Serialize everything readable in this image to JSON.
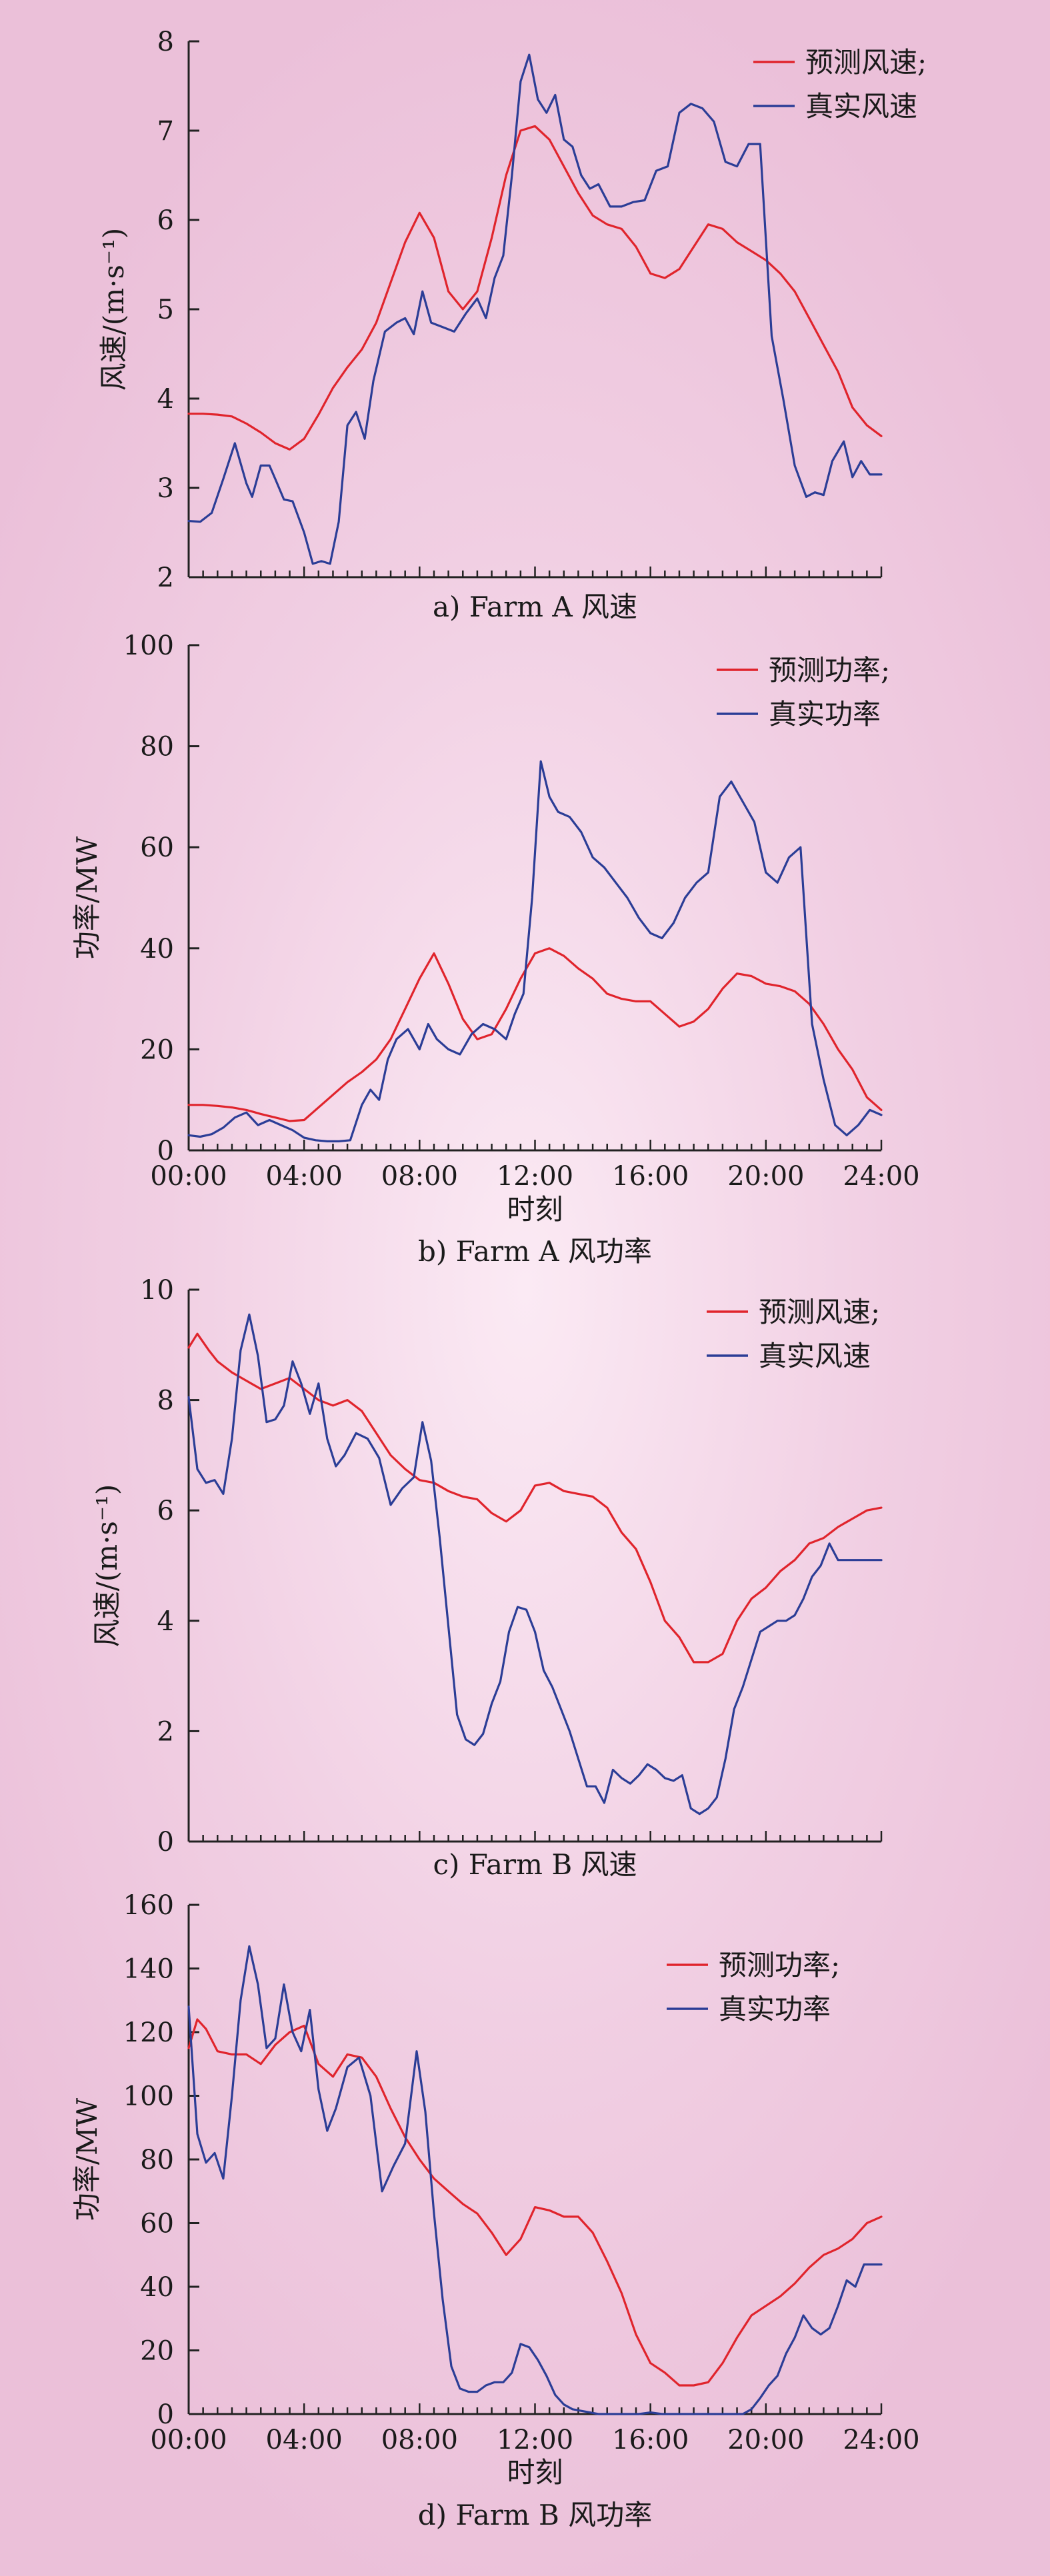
{
  "colors": {
    "forecast": "#e0242c",
    "actual": "#2b3d96",
    "axis": "#222222",
    "background": "#f1cfe3"
  },
  "chart_data": [
    {
      "type": "line",
      "caption": "a) Farm A 风速",
      "xlabel": "",
      "ylabel": "风速/(m·s⁻¹)",
      "xlim": [
        0,
        24
      ],
      "ylim": [
        2,
        8
      ],
      "yticks": [
        2,
        3,
        4,
        5,
        6,
        7,
        8
      ],
      "xticks_labeled": false,
      "legend_position": "top-right",
      "grid": false,
      "series": [
        {
          "name": "预测风速;",
          "color": "#e0242c",
          "x": [
            0,
            0.5,
            1,
            1.5,
            2,
            2.5,
            3,
            3.5,
            4,
            4.5,
            5,
            5.5,
            6,
            6.5,
            7,
            7.5,
            8,
            8.5,
            9,
            9.5,
            10,
            10.5,
            11,
            11.5,
            12,
            12.5,
            13,
            13.5,
            14,
            14.5,
            15,
            15.5,
            16,
            16.5,
            17,
            17.5,
            18,
            18.5,
            19,
            19.5,
            20,
            20.5,
            21,
            21.5,
            22,
            22.5,
            23,
            23.5,
            24
          ],
          "y": [
            3.83,
            3.83,
            3.82,
            3.8,
            3.72,
            3.62,
            3.5,
            3.43,
            3.55,
            3.82,
            4.12,
            4.35,
            4.55,
            4.85,
            5.3,
            5.75,
            6.08,
            5.8,
            5.2,
            5.0,
            5.2,
            5.8,
            6.5,
            7.0,
            7.05,
            6.9,
            6.6,
            6.3,
            6.05,
            5.95,
            5.9,
            5.7,
            5.4,
            5.35,
            5.45,
            5.7,
            5.95,
            5.9,
            5.75,
            5.65,
            5.55,
            5.4,
            5.2,
            4.9,
            4.6,
            4.3,
            3.9,
            3.7,
            3.58
          ]
        },
        {
          "name": "真实风速",
          "color": "#2b3d96",
          "x": [
            0,
            0.4,
            0.8,
            1.2,
            1.6,
            2,
            2.2,
            2.5,
            2.8,
            3,
            3.3,
            3.6,
            4,
            4.3,
            4.6,
            4.9,
            5.2,
            5.5,
            5.8,
            6.1,
            6.4,
            6.8,
            7.2,
            7.5,
            7.8,
            8.1,
            8.4,
            8.8,
            9.2,
            9.6,
            10,
            10.3,
            10.6,
            10.9,
            11.2,
            11.5,
            11.8,
            12.1,
            12.4,
            12.7,
            13,
            13.3,
            13.6,
            13.9,
            14.2,
            14.6,
            15,
            15.4,
            15.8,
            16.2,
            16.6,
            17,
            17.4,
            17.8,
            18.2,
            18.6,
            19,
            19.4,
            19.8,
            20.2,
            20.6,
            21,
            21.4,
            21.7,
            22,
            22.3,
            22.7,
            23,
            23.3,
            23.6,
            24
          ],
          "y": [
            2.63,
            2.62,
            2.72,
            3.1,
            3.5,
            3.05,
            2.9,
            3.25,
            3.25,
            3.1,
            2.87,
            2.85,
            2.5,
            2.15,
            2.18,
            2.15,
            2.62,
            3.7,
            3.85,
            3.55,
            4.2,
            4.75,
            4.85,
            4.9,
            4.72,
            5.2,
            4.85,
            4.8,
            4.75,
            4.95,
            5.12,
            4.9,
            5.35,
            5.6,
            6.5,
            7.55,
            7.85,
            7.35,
            7.2,
            7.4,
            6.9,
            6.82,
            6.5,
            6.35,
            6.4,
            6.15,
            6.15,
            6.2,
            6.22,
            6.55,
            6.6,
            7.2,
            7.3,
            7.25,
            7.1,
            6.65,
            6.6,
            6.85,
            6.85,
            4.7,
            4.0,
            3.25,
            2.9,
            2.95,
            2.92,
            3.3,
            3.52,
            3.12,
            3.3,
            3.15,
            3.15
          ]
        }
      ]
    },
    {
      "type": "line",
      "caption": "b) Farm A 风功率",
      "xlabel": "时刻",
      "ylabel": "功率/MW",
      "xlim": [
        0,
        24
      ],
      "ylim": [
        0,
        100
      ],
      "yticks": [
        0,
        20,
        40,
        60,
        80,
        100
      ],
      "xticks": [
        "00:00",
        "04:00",
        "08:00",
        "12:00",
        "16:00",
        "20:00",
        "24:00"
      ],
      "xticks_labeled": true,
      "legend_position": "top-right",
      "grid": false,
      "series": [
        {
          "name": "预测功率;",
          "color": "#e0242c",
          "x": [
            0,
            0.5,
            1,
            1.5,
            2,
            2.5,
            3,
            3.5,
            4,
            4.5,
            5,
            5.5,
            6,
            6.5,
            7,
            7.5,
            8,
            8.5,
            9,
            9.5,
            10,
            10.5,
            11,
            11.5,
            12,
            12.5,
            13,
            13.5,
            14,
            14.5,
            15,
            15.5,
            16,
            16.5,
            17,
            17.5,
            18,
            18.5,
            19,
            19.5,
            20,
            20.5,
            21,
            21.5,
            22,
            22.5,
            23,
            23.5,
            24
          ],
          "y": [
            9,
            9,
            8.8,
            8.5,
            8,
            7.2,
            6.5,
            5.8,
            6,
            8.5,
            11,
            13.5,
            15.5,
            18,
            22,
            28,
            34,
            39,
            33,
            26,
            22,
            23,
            28,
            34,
            39,
            40,
            38.5,
            36,
            34,
            31,
            30,
            29.5,
            29.5,
            27,
            24.5,
            25.5,
            28,
            32,
            35,
            34.5,
            33,
            32.5,
            31.5,
            29,
            25,
            20,
            16,
            10.5,
            8
          ]
        },
        {
          "name": "真实功率",
          "color": "#2b3d96",
          "x": [
            0,
            0.4,
            0.8,
            1.2,
            1.6,
            2,
            2.4,
            2.8,
            3.2,
            3.6,
            4,
            4.4,
            4.8,
            5.2,
            5.6,
            6,
            6.3,
            6.6,
            6.9,
            7.2,
            7.6,
            8,
            8.3,
            8.6,
            9,
            9.4,
            9.8,
            10.2,
            10.6,
            11,
            11.3,
            11.6,
            11.9,
            12.2,
            12.5,
            12.8,
            13.2,
            13.6,
            14,
            14.4,
            14.8,
            15.2,
            15.6,
            16,
            16.4,
            16.8,
            17.2,
            17.6,
            18,
            18.4,
            18.8,
            19.2,
            19.6,
            20,
            20.4,
            20.8,
            21.2,
            21.6,
            22,
            22.4,
            22.8,
            23.2,
            23.6,
            24
          ],
          "y": [
            3,
            2.7,
            3.2,
            4.5,
            6.5,
            7.5,
            5,
            6,
            5,
            4,
            2.5,
            2,
            1.8,
            1.8,
            2,
            9,
            12,
            10,
            18,
            22,
            24,
            20,
            25,
            22,
            20,
            19,
            23,
            25,
            24,
            22,
            27,
            31,
            50,
            77,
            70,
            67,
            66,
            63,
            58,
            56,
            53,
            50,
            46,
            43,
            42,
            45,
            50,
            53,
            55,
            70,
            73,
            69,
            65,
            55,
            53,
            58,
            60,
            25,
            14,
            5,
            3,
            5,
            8,
            7
          ]
        }
      ]
    },
    {
      "type": "line",
      "caption": "c) Farm B 风速",
      "xlabel": "",
      "ylabel": "风速/(m·s⁻¹)",
      "xlim": [
        0,
        24
      ],
      "ylim": [
        0,
        10
      ],
      "yticks": [
        0,
        2,
        4,
        6,
        8,
        10
      ],
      "xticks_labeled": false,
      "legend_position": "top-right",
      "grid": false,
      "series": [
        {
          "name": "预测风速;",
          "color": "#e0242c",
          "x": [
            0,
            0.3,
            0.7,
            1,
            1.5,
            2,
            2.5,
            3,
            3.5,
            4,
            4.5,
            5,
            5.5,
            6,
            6.5,
            7,
            7.5,
            8,
            8.5,
            9,
            9.5,
            10,
            10.5,
            11,
            11.5,
            12,
            12.5,
            13,
            13.5,
            14,
            14.5,
            15,
            15.5,
            16,
            16.5,
            17,
            17.5,
            18,
            18.5,
            19,
            19.5,
            20,
            20.5,
            21,
            21.5,
            22,
            22.5,
            23,
            23.5,
            24
          ],
          "y": [
            8.95,
            9.2,
            8.9,
            8.7,
            8.5,
            8.35,
            8.2,
            8.3,
            8.4,
            8.2,
            8.0,
            7.9,
            8.0,
            7.8,
            7.4,
            7.0,
            6.75,
            6.55,
            6.5,
            6.35,
            6.25,
            6.2,
            5.95,
            5.8,
            6.0,
            6.45,
            6.5,
            6.35,
            6.3,
            6.25,
            6.05,
            5.6,
            5.3,
            4.7,
            4.0,
            3.7,
            3.25,
            3.25,
            3.4,
            4.0,
            4.4,
            4.6,
            4.9,
            5.1,
            5.4,
            5.5,
            5.7,
            5.85,
            6.0,
            6.05
          ]
        },
        {
          "name": "真实风速",
          "color": "#2b3d96",
          "x": [
            0,
            0.3,
            0.6,
            0.9,
            1.2,
            1.5,
            1.8,
            2.1,
            2.4,
            2.7,
            3,
            3.3,
            3.6,
            3.9,
            4.2,
            4.5,
            4.8,
            5.1,
            5.4,
            5.8,
            6.2,
            6.6,
            7,
            7.4,
            7.8,
            8.1,
            8.4,
            8.7,
            9,
            9.3,
            9.6,
            9.9,
            10.2,
            10.5,
            10.8,
            11.1,
            11.4,
            11.7,
            12,
            12.3,
            12.6,
            12.9,
            13.2,
            13.5,
            13.8,
            14.1,
            14.4,
            14.7,
            15,
            15.3,
            15.6,
            15.9,
            16.2,
            16.5,
            16.8,
            17.1,
            17.4,
            17.7,
            18,
            18.3,
            18.6,
            18.9,
            19.2,
            19.5,
            19.8,
            20.1,
            20.4,
            20.7,
            21,
            21.3,
            21.6,
            21.9,
            22.2,
            22.5,
            22.8,
            23.1,
            23.4,
            23.7,
            24
          ],
          "y": [
            8.05,
            6.75,
            6.5,
            6.55,
            6.3,
            7.3,
            8.9,
            9.55,
            8.8,
            7.6,
            7.65,
            7.9,
            8.7,
            8.3,
            7.75,
            8.3,
            7.3,
            6.8,
            7.0,
            7.4,
            7.3,
            6.95,
            6.1,
            6.4,
            6.6,
            7.6,
            6.9,
            5.5,
            3.9,
            2.3,
            1.85,
            1.75,
            1.95,
            2.5,
            2.9,
            3.8,
            4.25,
            4.2,
            3.8,
            3.1,
            2.8,
            2.4,
            2.0,
            1.5,
            1.0,
            1.0,
            0.7,
            1.3,
            1.15,
            1.05,
            1.2,
            1.4,
            1.3,
            1.15,
            1.1,
            1.2,
            0.6,
            0.5,
            0.6,
            0.8,
            1.5,
            2.4,
            2.8,
            3.3,
            3.8,
            3.9,
            4.0,
            4.0,
            4.1,
            4.4,
            4.8,
            5.0,
            5.4,
            5.1,
            5.1,
            5.1,
            5.1,
            5.1,
            5.1
          ]
        }
      ]
    },
    {
      "type": "line",
      "caption": "d) Farm B 风功率",
      "xlabel": "时刻",
      "ylabel": "功率/MW",
      "xlim": [
        0,
        24
      ],
      "ylim": [
        0,
        160
      ],
      "yticks": [
        0,
        20,
        40,
        60,
        80,
        100,
        120,
        140,
        160
      ],
      "xticks": [
        "00:00",
        "04:00",
        "08:00",
        "12:00",
        "16:00",
        "20:00",
        "24:00"
      ],
      "xticks_labeled": true,
      "legend_position": "top-right",
      "grid": false,
      "series": [
        {
          "name": "预测功率;",
          "color": "#e0242c",
          "x": [
            0,
            0.3,
            0.6,
            1,
            1.5,
            2,
            2.5,
            3,
            3.5,
            4,
            4.5,
            5,
            5.5,
            6,
            6.5,
            7,
            7.5,
            8,
            8.5,
            9,
            9.5,
            10,
            10.5,
            11,
            11.5,
            12,
            12.5,
            13,
            13.5,
            14,
            14.5,
            15,
            15.5,
            16,
            16.5,
            17,
            17.5,
            18,
            18.5,
            19,
            19.5,
            20,
            20.5,
            21,
            21.5,
            22,
            22.5,
            23,
            23.5,
            24
          ],
          "y": [
            115,
            124,
            121,
            114,
            113,
            113,
            110,
            116,
            120,
            122,
            110,
            106,
            113,
            112,
            106,
            96,
            87,
            80,
            74,
            70,
            66,
            63,
            57,
            50,
            55,
            65,
            64,
            62,
            62,
            57,
            48,
            38,
            25,
            16,
            13,
            9,
            9,
            10,
            16,
            24,
            31,
            34,
            37,
            41,
            46,
            50,
            52,
            55,
            60,
            62
          ]
        },
        {
          "name": "真实功率",
          "color": "#2b3d96",
          "x": [
            0,
            0.3,
            0.6,
            0.9,
            1.2,
            1.5,
            1.8,
            2.1,
            2.4,
            2.7,
            3,
            3.3,
            3.6,
            3.9,
            4.2,
            4.5,
            4.8,
            5.1,
            5.5,
            5.9,
            6.3,
            6.7,
            7.1,
            7.5,
            7.9,
            8.2,
            8.5,
            8.8,
            9.1,
            9.4,
            9.7,
            10,
            10.3,
            10.6,
            10.9,
            11.2,
            11.5,
            11.8,
            12.1,
            12.4,
            12.7,
            13,
            13.3,
            13.6,
            13.9,
            14.2,
            14.5,
            14.8,
            15.2,
            15.6,
            16,
            16.4,
            16.8,
            17.2,
            17.6,
            18,
            18.4,
            18.8,
            19.2,
            19.5,
            19.8,
            20.1,
            20.4,
            20.7,
            21,
            21.3,
            21.6,
            21.9,
            22.2,
            22.5,
            22.8,
            23.1,
            23.4,
            23.7,
            24
          ],
          "y": [
            128,
            88,
            79,
            82,
            74,
            100,
            130,
            147,
            135,
            115,
            118,
            135,
            120,
            114,
            127,
            102,
            89,
            96,
            109,
            112,
            100,
            70,
            78,
            85,
            114,
            95,
            63,
            36,
            15,
            8,
            7,
            7,
            9,
            10,
            10,
            13,
            22,
            21,
            17,
            12,
            6,
            3,
            1.5,
            1,
            0.5,
            0,
            0,
            0,
            0,
            0,
            0.5,
            0,
            0,
            0,
            0,
            0,
            0,
            0,
            0,
            1.5,
            5,
            9,
            12,
            19,
            24,
            31,
            27,
            25,
            27,
            34,
            42,
            40,
            47,
            47,
            47
          ]
        }
      ]
    }
  ]
}
